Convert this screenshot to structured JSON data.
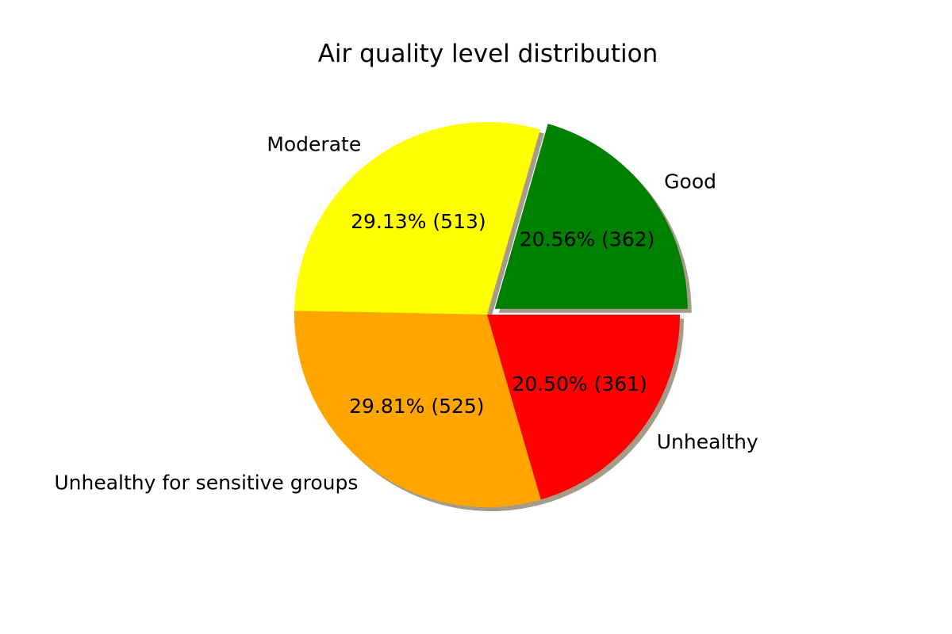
{
  "chart_data": {
    "type": "pie",
    "title": "Air quality level distribution",
    "slices": [
      {
        "label": "Good",
        "value": 362,
        "percent_label": "20.56%  (362)",
        "color": "#008000",
        "exploded": true
      },
      {
        "label": "Moderate",
        "value": 513,
        "percent_label": "29.13%  (513)",
        "color": "#ffff00",
        "exploded": false
      },
      {
        "label": "Unhealthy for sensitive groups",
        "value": 525,
        "percent_label": "29.81%  (525)",
        "color": "#ffa500",
        "exploded": false
      },
      {
        "label": "Unhealthy",
        "value": 361,
        "percent_label": "20.50%  (361)",
        "color": "#ff0000",
        "exploded": false
      }
    ],
    "shadow": true,
    "start_angle_deg": 0,
    "direction": "counterclockwise"
  }
}
